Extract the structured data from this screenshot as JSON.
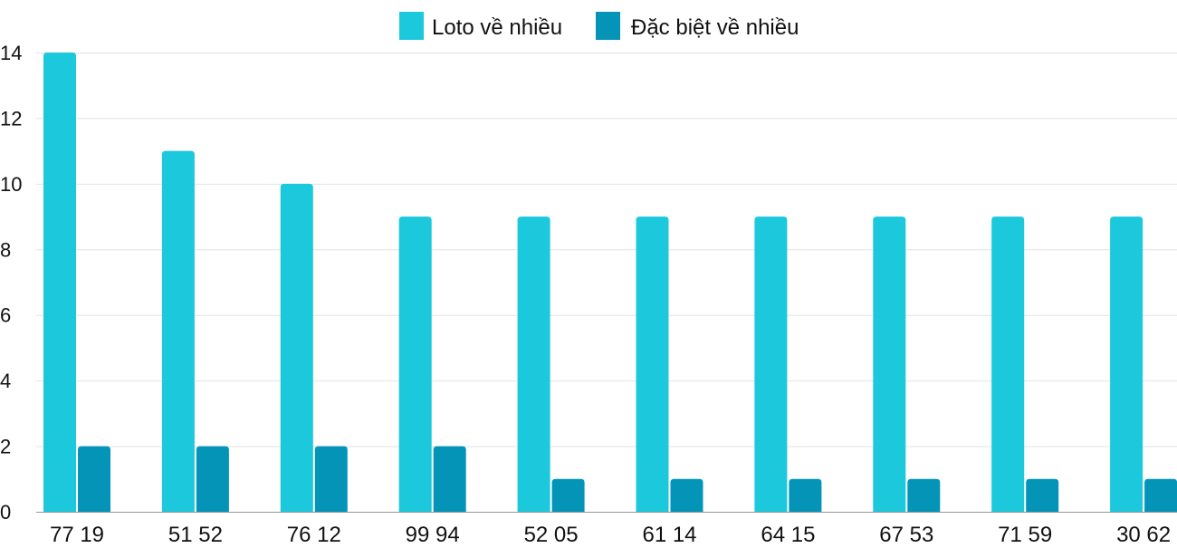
{
  "chart_data": {
    "type": "bar",
    "title": "",
    "xlabel": "",
    "ylabel": "",
    "categories": [
      "77 19",
      "51 52",
      "76 12",
      "99 94",
      "52 05",
      "61 14",
      "64 15",
      "67 53",
      "71 59",
      "30 62"
    ],
    "series": [
      {
        "name": "Loto về nhiều",
        "color": "#1bc8dc",
        "values": [
          14,
          11,
          10,
          9,
          9,
          9,
          9,
          9,
          9,
          9
        ]
      },
      {
        "name": "Đặc biệt về nhiều",
        "color": "#0494b8",
        "values": [
          2,
          2,
          2,
          2,
          1,
          1,
          1,
          1,
          1,
          1
        ]
      }
    ],
    "ylim": [
      0,
      14
    ],
    "yticks": [
      0,
      2,
      4,
      6,
      8,
      10,
      12,
      14
    ],
    "grid": true,
    "legend_position": "top-center"
  }
}
